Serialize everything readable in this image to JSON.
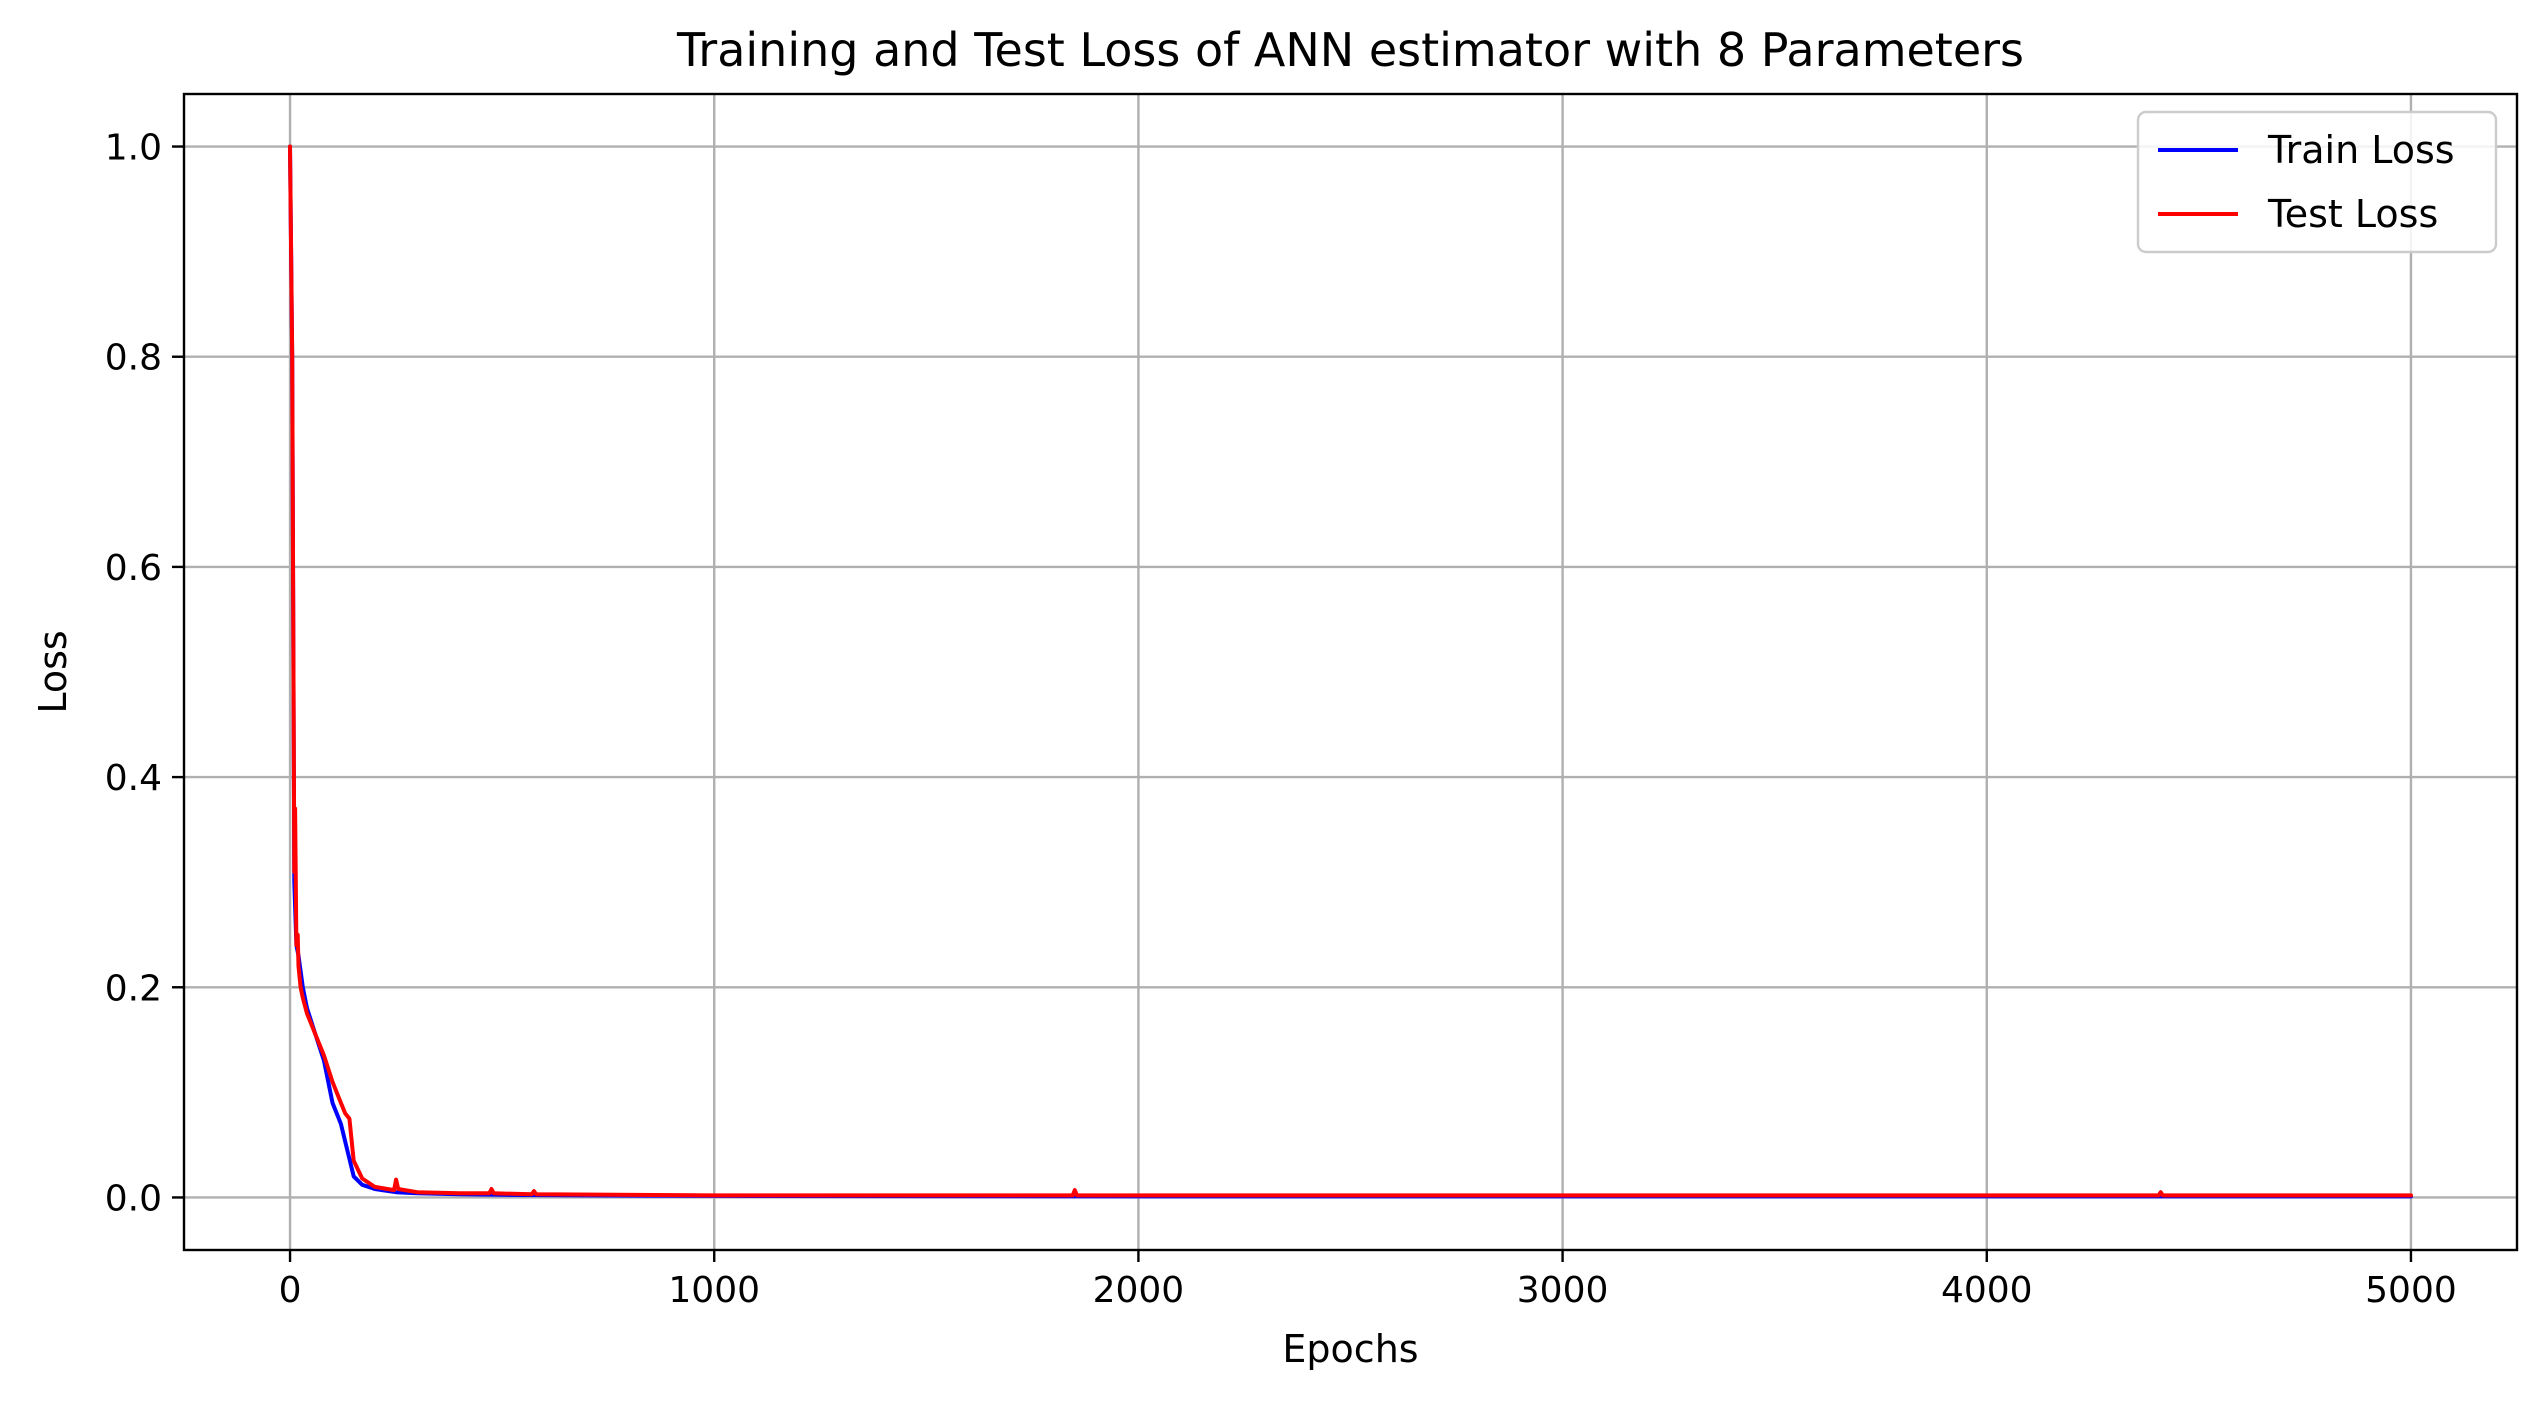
{
  "chart_data": {
    "type": "line",
    "title": "Training and Test Loss of ANN estimator with 8 Parameters",
    "xlabel": "Epochs",
    "ylabel": "Loss",
    "xlim": [
      -250,
      5250
    ],
    "ylim": [
      -0.05,
      1.05
    ],
    "xticks": [
      0,
      1000,
      2000,
      3000,
      4000,
      5000
    ],
    "xtick_labels": [
      "0",
      "1000",
      "2000",
      "3000",
      "4000",
      "5000"
    ],
    "yticks": [
      0.0,
      0.2,
      0.4,
      0.6,
      0.8,
      1.0
    ],
    "ytick_labels": [
      "0.0",
      "0.2",
      "0.4",
      "0.6",
      "0.8",
      "1.0"
    ],
    "grid": true,
    "legend_position": "top-right",
    "series": [
      {
        "name": "Train Loss",
        "color": "#0000ff",
        "x": [
          0,
          5,
          10,
          15,
          20,
          30,
          40,
          60,
          80,
          100,
          120,
          135,
          150,
          170,
          200,
          250,
          300,
          400,
          500,
          700,
          1000,
          2000,
          3000,
          4000,
          5000
        ],
        "y": [
          1.0,
          0.8,
          0.3,
          0.24,
          0.23,
          0.2,
          0.18,
          0.155,
          0.13,
          0.09,
          0.07,
          0.045,
          0.02,
          0.012,
          0.008,
          0.005,
          0.004,
          0.003,
          0.0025,
          0.002,
          0.0015,
          0.001,
          0.001,
          0.001,
          0.001
        ]
      },
      {
        "name": "Test Loss",
        "color": "#ff0000",
        "x": [
          0,
          5,
          10,
          12,
          15,
          18,
          20,
          25,
          30,
          40,
          50,
          60,
          80,
          100,
          120,
          130,
          140,
          150,
          170,
          200,
          245,
          250,
          255,
          300,
          400,
          470,
          475,
          480,
          570,
          575,
          580,
          1000,
          1845,
          1850,
          1855,
          2000,
          3000,
          4000,
          4405,
          4410,
          4415,
          5000
        ],
        "y": [
          1.0,
          0.8,
          0.31,
          0.37,
          0.24,
          0.25,
          0.22,
          0.2,
          0.19,
          0.175,
          0.165,
          0.155,
          0.135,
          0.11,
          0.09,
          0.08,
          0.075,
          0.035,
          0.018,
          0.01,
          0.007,
          0.017,
          0.008,
          0.005,
          0.004,
          0.004,
          0.008,
          0.004,
          0.003,
          0.006,
          0.003,
          0.002,
          0.002,
          0.007,
          0.002,
          0.002,
          0.002,
          0.002,
          0.002,
          0.005,
          0.002,
          0.002
        ]
      }
    ]
  }
}
